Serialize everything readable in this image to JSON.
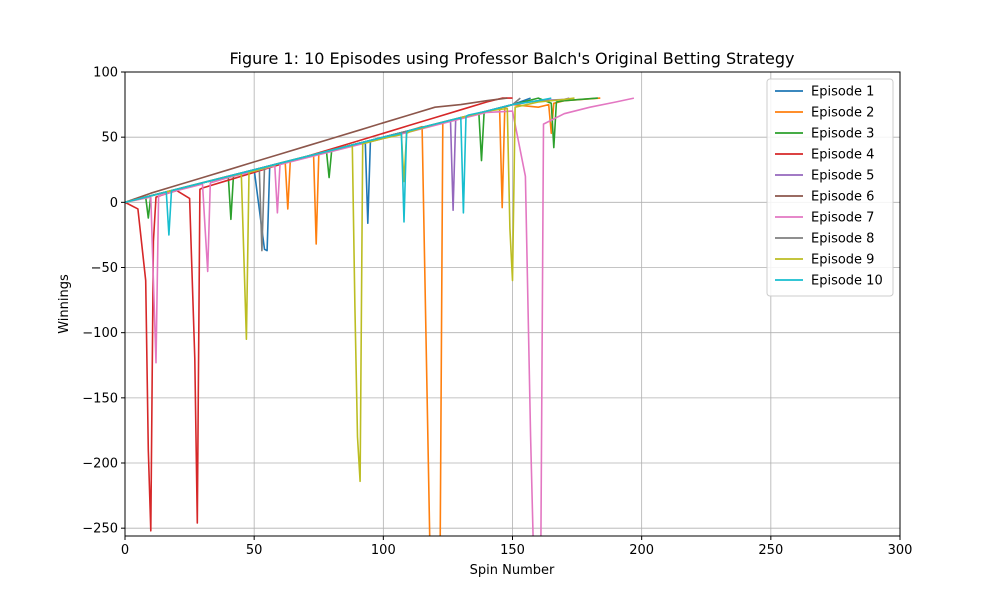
{
  "chart_data": {
    "type": "line",
    "title": "Figure 1: 10 Episodes using Professor Balch's Original Betting Strategy",
    "xlabel": "Spin Number",
    "ylabel": "Winnings",
    "xlim": [
      0,
      300
    ],
    "ylim": [
      -256,
      100
    ],
    "xticks": [
      0,
      50,
      100,
      150,
      200,
      250,
      300
    ],
    "yticks": [
      -250,
      -200,
      -150,
      -100,
      -50,
      0,
      50,
      100
    ],
    "grid": true,
    "legend_position": "top-right",
    "series": [
      {
        "name": "Episode 1",
        "color": "#1f77b4",
        "x": [
          0,
          10,
          20,
          30,
          40,
          50,
          54,
          55,
          56,
          60,
          70,
          80,
          90,
          93,
          94,
          95,
          100,
          110,
          120,
          130,
          140,
          150,
          157
        ],
        "y": [
          0,
          5,
          10,
          15,
          20,
          25,
          -36,
          -37,
          27,
          30,
          35,
          40,
          45,
          46,
          -16,
          47,
          50,
          55,
          60,
          65,
          70,
          75,
          80
        ]
      },
      {
        "name": "Episode 2",
        "color": "#ff7f0e",
        "x": [
          0,
          10,
          20,
          30,
          40,
          50,
          60,
          62,
          63,
          64,
          70,
          73,
          74,
          75,
          80,
          90,
          100,
          110,
          115,
          118,
          120,
          121,
          122,
          123,
          130,
          140,
          145,
          146,
          147,
          150,
          160,
          164,
          165,
          166,
          170,
          184
        ],
        "y": [
          0,
          5,
          10,
          15,
          20,
          25,
          30,
          31,
          -5,
          32,
          35,
          36,
          -32,
          37,
          40,
          45,
          50,
          55,
          58,
          -260,
          -260,
          -260,
          -260,
          61,
          65,
          70,
          72,
          -4,
          73,
          75,
          73,
          75,
          53,
          76,
          78,
          80
        ]
      },
      {
        "name": "Episode 3",
        "color": "#2ca02c",
        "x": [
          0,
          8,
          9,
          10,
          20,
          30,
          40,
          41,
          42,
          50,
          60,
          70,
          78,
          79,
          80,
          90,
          110,
          120,
          130,
          137,
          138,
          139,
          150,
          160,
          165,
          166,
          167,
          170,
          183
        ],
        "y": [
          0,
          4,
          -12,
          5,
          10,
          15,
          20,
          -13,
          21,
          25,
          30,
          35,
          39,
          19,
          40,
          45,
          55,
          60,
          65,
          68,
          32,
          69,
          75,
          80,
          76,
          42,
          77,
          78,
          80
        ]
      },
      {
        "name": "Episode 4",
        "color": "#d62728",
        "x": [
          0,
          5,
          8,
          9,
          10,
          11,
          12,
          15,
          20,
          25,
          27,
          28,
          29,
          30,
          40,
          50,
          60,
          70,
          80,
          90,
          100,
          110,
          120,
          130,
          140,
          146,
          150
        ],
        "y": [
          0,
          -5,
          -60,
          -190,
          -252,
          -30,
          4,
          6,
          9,
          3,
          -120,
          -246,
          10,
          11,
          17,
          23,
          29,
          35,
          41,
          47,
          53,
          59,
          65,
          71,
          77,
          80,
          80
        ]
      },
      {
        "name": "Episode 5",
        "color": "#9467bd",
        "x": [
          0,
          10,
          20,
          30,
          40,
          50,
          60,
          70,
          80,
          90,
          100,
          110,
          120,
          126,
          127,
          128,
          130,
          140,
          150,
          160,
          170,
          172
        ],
        "y": [
          0,
          5,
          10,
          15,
          20,
          25,
          30,
          35,
          40,
          45,
          50,
          55,
          60,
          63,
          -6,
          64,
          65,
          70,
          75,
          78,
          79,
          80
        ]
      },
      {
        "name": "Episode 6",
        "color": "#8c564b",
        "x": [
          0,
          10,
          20,
          30,
          40,
          50,
          60,
          70,
          80,
          90,
          100,
          110,
          120,
          130,
          140,
          148
        ],
        "y": [
          0,
          7,
          13,
          19,
          25,
          31,
          37,
          43,
          49,
          55,
          61,
          67,
          73,
          75,
          78,
          80
        ]
      },
      {
        "name": "Episode 7",
        "color": "#e377c2",
        "x": [
          0,
          10,
          11,
          12,
          13,
          20,
          30,
          31,
          32,
          33,
          40,
          50,
          58,
          59,
          60,
          70,
          80,
          90,
          100,
          110,
          120,
          130,
          140,
          150,
          155,
          157,
          158,
          160,
          161,
          162,
          170,
          180,
          190,
          197
        ],
        "y": [
          0,
          4,
          -60,
          -123,
          5,
          9,
          14,
          -20,
          -53,
          15,
          19,
          24,
          28,
          -8,
          29,
          34,
          39,
          44,
          49,
          54,
          59,
          64,
          69,
          70,
          20,
          -180,
          -260,
          -260,
          -260,
          60,
          68,
          73,
          77,
          80
        ]
      },
      {
        "name": "Episode 8",
        "color": "#7f7f7f",
        "x": [
          0,
          10,
          20,
          30,
          40,
          50,
          52,
          53,
          54,
          60,
          70,
          80,
          90,
          100,
          110,
          120,
          130,
          140,
          150,
          153
        ],
        "y": [
          0,
          5,
          10,
          15,
          20,
          25,
          26,
          -37,
          27,
          30,
          35,
          40,
          45,
          50,
          55,
          60,
          65,
          70,
          75,
          80
        ]
      },
      {
        "name": "Episode 9",
        "color": "#bcbd22",
        "x": [
          0,
          10,
          20,
          30,
          40,
          45,
          46,
          47,
          48,
          50,
          60,
          70,
          80,
          88,
          89,
          90,
          91,
          92,
          100,
          107,
          108,
          109,
          110,
          120,
          130,
          140,
          148,
          149,
          150,
          151,
          160,
          170,
          174
        ],
        "y": [
          0,
          5,
          10,
          15,
          20,
          22,
          -40,
          -105,
          23,
          24,
          30,
          35,
          40,
          44,
          -80,
          -180,
          -214,
          45,
          49,
          52,
          16,
          53,
          54,
          60,
          65,
          70,
          72,
          -20,
          -60,
          73,
          77,
          79,
          80
        ]
      },
      {
        "name": "Episode 10",
        "color": "#17becf",
        "x": [
          0,
          10,
          16,
          17,
          18,
          20,
          30,
          40,
          50,
          60,
          70,
          80,
          90,
          100,
          107,
          108,
          109,
          110,
          120,
          130,
          131,
          132,
          133,
          140,
          150,
          160,
          165
        ],
        "y": [
          0,
          5,
          8,
          -25,
          9,
          10,
          15,
          20,
          25,
          30,
          35,
          40,
          45,
          50,
          53,
          -15,
          54,
          55,
          60,
          65,
          -8,
          66,
          67,
          70,
          75,
          78,
          80
        ]
      }
    ]
  }
}
